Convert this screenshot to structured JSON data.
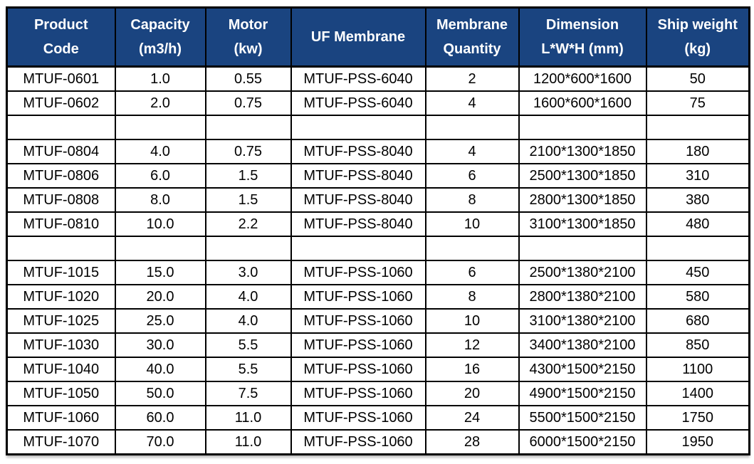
{
  "chart_data": {
    "type": "table",
    "columns": [
      "Product Code",
      "Capacity (m3/h)",
      "Motor (kw)",
      "UF Membrane",
      "Membrane Quantity",
      "Dimension L*W*H (mm)",
      "Ship weight (kg)"
    ],
    "rows": [
      [
        "MTUF-0601",
        "1.0",
        "0.55",
        "MTUF-PSS-6040",
        "2",
        "1200*600*1600",
        "50"
      ],
      [
        "MTUF-0602",
        "2.0",
        "0.75",
        "MTUF-PSS-6040",
        "4",
        "1600*600*1600",
        "75"
      ],
      [
        "",
        "",
        "",
        "",
        "",
        "",
        ""
      ],
      [
        "MTUF-0804",
        "4.0",
        "0.75",
        "MTUF-PSS-8040",
        "4",
        "2100*1300*1850",
        "180"
      ],
      [
        "MTUF-0806",
        "6.0",
        "1.5",
        "MTUF-PSS-8040",
        "6",
        "2500*1300*1850",
        "310"
      ],
      [
        "MTUF-0808",
        "8.0",
        "1.5",
        "MTUF-PSS-8040",
        "8",
        "2800*1300*1850",
        "380"
      ],
      [
        "MTUF-0810",
        "10.0",
        "2.2",
        "MTUF-PSS-8040",
        "10",
        "3100*1300*1850",
        "480"
      ],
      [
        "",
        "",
        "",
        "",
        "",
        "",
        ""
      ],
      [
        "MTUF-1015",
        "15.0",
        "3.0",
        "MTUF-PSS-1060",
        "6",
        "2500*1380*2100",
        "450"
      ],
      [
        "MTUF-1020",
        "20.0",
        "4.0",
        "MTUF-PSS-1060",
        "8",
        "2800*1380*2100",
        "580"
      ],
      [
        "MTUF-1025",
        "25.0",
        "4.0",
        "MTUF-PSS-1060",
        "10",
        "3100*1380*2100",
        "680"
      ],
      [
        "MTUF-1030",
        "30.0",
        "5.5",
        "MTUF-PSS-1060",
        "12",
        "3400*1380*2100",
        "850"
      ],
      [
        "MTUF-1040",
        "40.0",
        "5.5",
        "MTUF-PSS-1060",
        "16",
        "4300*1500*2150",
        "1100"
      ],
      [
        "MTUF-1050",
        "50.0",
        "7.5",
        "MTUF-PSS-1060",
        "20",
        "4900*1500*2150",
        "1400"
      ],
      [
        "MTUF-1060",
        "60.0",
        "11.0",
        "MTUF-PSS-1060",
        "24",
        "5500*1500*2150",
        "1750"
      ],
      [
        "MTUF-1070",
        "70.0",
        "11.0",
        "MTUF-PSS-1060",
        "28",
        "6000*1500*2150",
        "1950"
      ]
    ]
  },
  "header_display": [
    "Product\nCode",
    "Capacity\n(m3/h)",
    "Motor\n(kw)",
    "UF Membrane",
    "Membrane\nQuantity",
    "Dimension\nL*W*H (mm)",
    "Ship weight\n(kg)"
  ],
  "colors": {
    "header_bg": "#1A4480",
    "header_text": "#FFFFFF",
    "border": "#000000",
    "cell_bg": "#FFFFFF",
    "cell_text": "#000000",
    "page_bg": "#FFFFFF"
  }
}
